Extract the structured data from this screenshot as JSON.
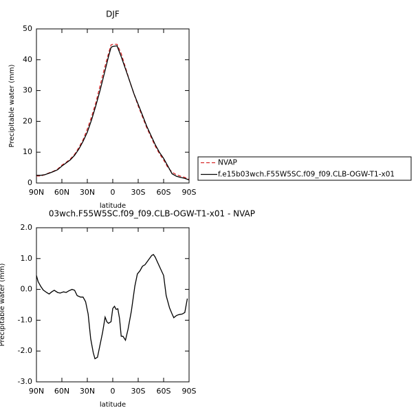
{
  "chart_data": [
    {
      "type": "line",
      "title": "DJF",
      "x_label": "latitude",
      "y_label": "Precipitable water (mm)",
      "xlim": [
        90,
        -90
      ],
      "xticks": [
        {
          "value": 90,
          "label": "90N"
        },
        {
          "value": 60,
          "label": "60N"
        },
        {
          "value": 30,
          "label": "30N"
        },
        0,
        {
          "value": -30,
          "label": "30S"
        },
        {
          "value": -60,
          "label": "60S"
        },
        {
          "value": -90,
          "label": "90S"
        }
      ],
      "ylim": [
        0,
        50
      ],
      "yticks": [
        0,
        10,
        20,
        30,
        40,
        50
      ],
      "legend": "outside-right",
      "x": [
        90,
        85,
        80,
        75,
        70,
        65,
        60,
        55,
        50,
        45,
        40,
        35,
        30,
        25,
        20,
        15,
        10,
        5,
        2,
        0,
        -5,
        -10,
        -15,
        -20,
        -25,
        -30,
        -35,
        -40,
        -45,
        -50,
        -55,
        -60,
        -65,
        -70,
        -75,
        -80,
        -85,
        -90
      ],
      "series": [
        {
          "name": "NVAP",
          "color": "#d62728",
          "dash": "dashed",
          "values": [
            2.3,
            2.3,
            2.7,
            3.3,
            3.8,
            4.5,
            5.8,
            6.7,
            7.8,
            9.3,
            11.5,
            14,
            17.5,
            21.5,
            26,
            31.5,
            37,
            42,
            44.8,
            45,
            45,
            42,
            37.5,
            33,
            29,
            25,
            21.5,
            18,
            15,
            12,
            9.5,
            7.5,
            5,
            3.5,
            2.7,
            2.2,
            1.8,
            1.2
          ]
        },
        {
          "name": "f.e15b03wch.F55W5SC.f09_f09.CLB-OGW-T1-x01",
          "color": "#000000",
          "dash": "solid",
          "values": [
            2.5,
            2.5,
            2.7,
            3.2,
            3.7,
            4.3,
            5.5,
            6.5,
            7.5,
            9,
            11,
            13.5,
            16.5,
            20.5,
            25,
            30,
            35.5,
            41,
            44,
            44.3,
            44.5,
            41,
            37,
            33,
            29,
            25.5,
            22,
            18.5,
            15.5,
            12.5,
            10,
            8,
            5.5,
            3,
            2.2,
            1.8,
            1.5,
            1
          ]
        }
      ]
    },
    {
      "type": "line",
      "title": "03wch.F55W5SC.f09_f09.CLB-OGW-T1-x01 - NVAP",
      "x_label": "latitude",
      "y_label": "Precipitable water (mm)",
      "xlim": [
        90,
        -90
      ],
      "xticks": [
        {
          "value": 90,
          "label": "90N"
        },
        {
          "value": 60,
          "label": "60N"
        },
        {
          "value": 30,
          "label": "30N"
        },
        0,
        {
          "value": -30,
          "label": "30S"
        },
        {
          "value": -60,
          "label": "60S"
        },
        {
          "value": -90,
          "label": "90S"
        }
      ],
      "ylim": [
        -3,
        2
      ],
      "yticks": [
        {
          "value": -3,
          "label": "-3.0"
        },
        {
          "value": -2,
          "label": "-2.0"
        },
        {
          "value": -1,
          "label": "-1.0"
        },
        {
          "value": 0,
          "label": "0.0"
        },
        {
          "value": 1,
          "label": "1.0"
        },
        {
          "value": 2,
          "label": "2.0"
        }
      ],
      "x": [
        90,
        88,
        85,
        82,
        78,
        75,
        72,
        69,
        65,
        62,
        58,
        55,
        52,
        48,
        45,
        42,
        38,
        35,
        32,
        29,
        26,
        23,
        21,
        18,
        15,
        12,
        9,
        7,
        5,
        2,
        0,
        -2,
        -4,
        -6,
        -8,
        -10,
        -12,
        -15,
        -18,
        -22,
        -26,
        -29,
        -32,
        -35,
        -38,
        -42,
        -46,
        -48,
        -50,
        -55,
        -60,
        -63,
        -67,
        -70,
        -72,
        -75,
        -78,
        -82,
        -85,
        -88
      ],
      "series": [
        {
          "color": "#000000",
          "dash": "solid",
          "values": [
            0.45,
            0.25,
            0.1,
            -0.02,
            -0.1,
            -0.15,
            -0.08,
            -0.03,
            -0.1,
            -0.12,
            -0.08,
            -0.1,
            -0.05,
            0,
            -0.03,
            -0.2,
            -0.25,
            -0.25,
            -0.4,
            -0.8,
            -1.6,
            -2.05,
            -2.25,
            -2.2,
            -1.8,
            -1.4,
            -0.9,
            -1.05,
            -1.1,
            -1.05,
            -0.62,
            -0.55,
            -0.65,
            -0.63,
            -0.95,
            -1.52,
            -1.52,
            -1.65,
            -1.3,
            -0.7,
            0.1,
            0.5,
            0.6,
            0.75,
            0.8,
            0.95,
            1.1,
            1.13,
            1.05,
            0.75,
            0.45,
            -0.2,
            -0.6,
            -0.8,
            -0.92,
            -0.85,
            -0.82,
            -0.8,
            -0.75,
            -0.3
          ]
        }
      ]
    }
  ]
}
